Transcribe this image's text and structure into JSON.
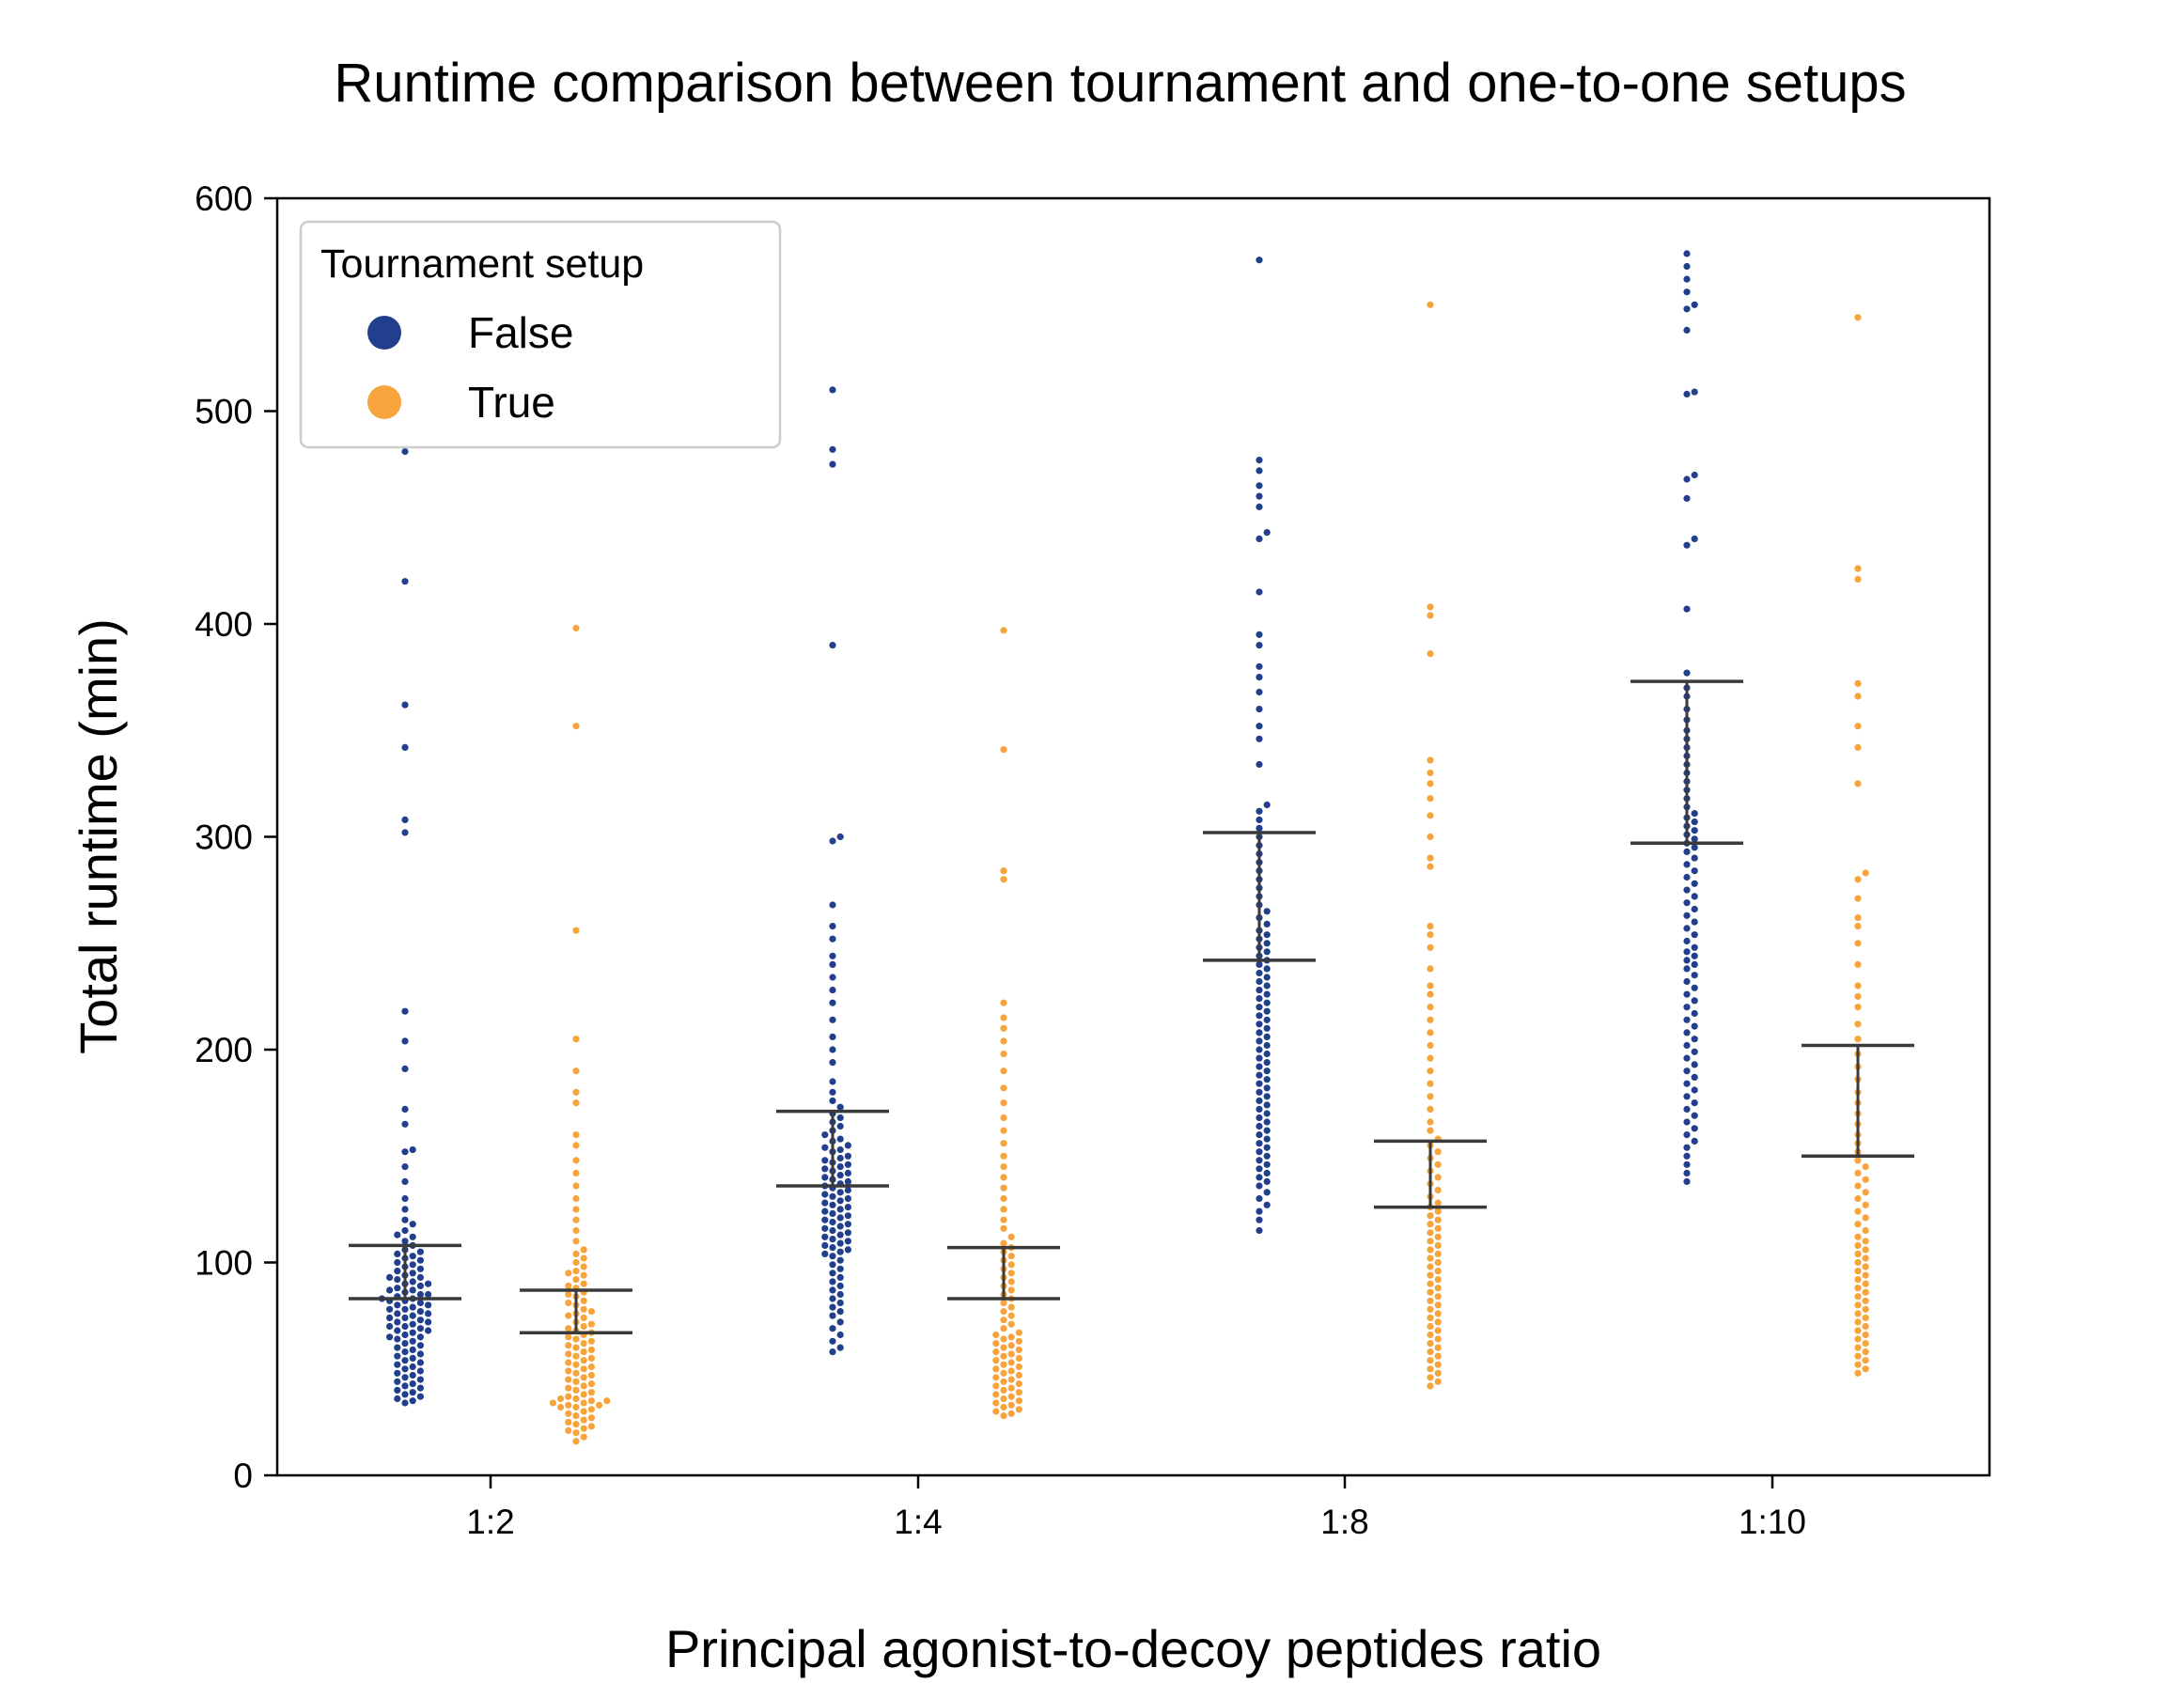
{
  "chart_data": {
    "type": "scatter",
    "subtype": "swarm with interquartile bars",
    "title": "Runtime comparison between tournament and one-to-one setups",
    "xlabel": "Principal agonist-to-decoy peptides ratio",
    "ylabel": "Total runtime (min)",
    "ylim": [
      0,
      600
    ],
    "yticks": [
      0,
      100,
      200,
      300,
      400,
      500,
      600
    ],
    "categories": [
      "1:2",
      "1:4",
      "1:8",
      "1:10"
    ],
    "grid": false,
    "legend": {
      "title": "Tournament setup",
      "placement": "top-left",
      "entries": [
        "False",
        "True"
      ]
    },
    "series": [
      {
        "name": "False",
        "color": "#213f8c",
        "groups": [
          {
            "category": "1:2",
            "q1": 83,
            "q3": 108,
            "points": [
              481,
              420,
              362,
              342,
              308,
              302,
              218,
              204,
              191,
              172,
              165,
              153,
              152,
              145,
              138,
              130,
              125,
              120,
              118,
              115,
              113,
              112,
              110,
              108,
              106,
              105,
              104,
              103,
              102,
              101,
              100,
              99,
              98,
              97,
              96,
              95,
              94,
              93,
              93,
              92,
              91,
              90,
              90,
              89,
              88,
              87,
              87,
              86,
              85,
              85,
              84,
              83,
              83,
              82,
              82,
              81,
              80,
              80,
              79,
              78,
              78,
              77,
              76,
              76,
              75,
              74,
              74,
              73,
              72,
              72,
              71,
              70,
              70,
              69,
              68,
              68,
              67,
              66,
              65,
              65,
              64,
              63,
              62,
              61,
              60,
              59,
              58,
              57,
              56,
              55,
              54,
              53,
              52,
              51,
              50,
              49,
              48,
              47,
              46,
              45,
              44,
              43,
              42,
              41,
              40,
              39,
              38,
              37,
              36,
              35,
              34
            ]
          },
          {
            "category": "1:4",
            "q1": 136,
            "q3": 171,
            "points": [
              510,
              482,
              475,
              390,
              300,
              298,
              268,
              258,
              252,
              244,
              240,
              234,
              228,
              222,
              214,
              206,
              200,
              194,
              185,
              180,
              176,
              173,
              170,
              168,
              166,
              164,
              162,
              160,
              158,
              157,
              155,
              154,
              153,
              152,
              150,
              149,
              148,
              147,
              146,
              145,
              144,
              143,
              142,
              141,
              140,
              139,
              138,
              137,
              136,
              135,
              134,
              133,
              132,
              131,
              130,
              129,
              128,
              127,
              126,
              125,
              124,
              123,
              122,
              121,
              120,
              119,
              118,
              117,
              116,
              115,
              114,
              113,
              112,
              111,
              110,
              109,
              108,
              107,
              106,
              105,
              104,
              103,
              101,
              99,
              97,
              95,
              93,
              91,
              89,
              87,
              85,
              83,
              81,
              79,
              77,
              75,
              72,
              69,
              66,
              63,
              60,
              58
            ]
          },
          {
            "category": "1:8",
            "q1": 242,
            "q3": 302,
            "points": [
              571,
              477,
              472,
              465,
              460,
              455,
              443,
              440,
              415,
              395,
              390,
              380,
              375,
              368,
              360,
              352,
              346,
              334,
              315,
              312,
              308,
              304,
              300,
              296,
              292,
              288,
              284,
              280,
              276,
              272,
              268,
              265,
              262,
              259,
              256,
              254,
              252,
              250,
              248,
              246,
              244,
              242,
              240,
              238,
              236,
              234,
              232,
              230,
              228,
              226,
              224,
              222,
              220,
              218,
              216,
              214,
              212,
              210,
              208,
              206,
              204,
              202,
              200,
              198,
              196,
              194,
              192,
              190,
              188,
              186,
              184,
              182,
              180,
              178,
              176,
              174,
              172,
              170,
              168,
              166,
              164,
              162,
              160,
              158,
              156,
              154,
              152,
              150,
              148,
              146,
              144,
              142,
              140,
              138,
              136,
              133,
              130,
              127,
              124,
              120,
              115
            ]
          },
          {
            "category": "1:10",
            "q1": 297,
            "q3": 373,
            "points": [
              574,
              568,
              562,
              556,
              550,
              548,
              538,
              509,
              508,
              470,
              468,
              459,
              440,
              437,
              407,
              377,
              370,
              366,
              360,
              355,
              350,
              346,
              342,
              338,
              334,
              330,
              326,
              322,
              318,
              314,
              311,
              309,
              307,
              305,
              303,
              301,
              299,
              297,
              295,
              293,
              290,
              287,
              284,
              281,
              278,
              275,
              272,
              269,
              266,
              263,
              260,
              257,
              254,
              251,
              248,
              246,
              244,
              242,
              240,
              238,
              235,
              232,
              229,
              226,
              223,
              220,
              217,
              214,
              211,
              208,
              205,
              202,
              199,
              196,
              193,
              190,
              187,
              184,
              181,
              178,
              175,
              172,
              169,
              166,
              163,
              160,
              157,
              154,
              150,
              146,
              142,
              138
            ]
          }
        ]
      },
      {
        "name": "True",
        "color": "#f7a43c",
        "groups": [
          {
            "category": "1:2",
            "q1": 67,
            "q3": 87,
            "points": [
              398,
              352,
              256,
              205,
              190,
              180,
              175,
              160,
              155,
              148,
              142,
              136,
              130,
              125,
              120,
              115,
              110,
              106,
              104,
              102,
              100,
              98,
              96,
              95,
              94,
              92,
              90,
              89,
              88,
              86,
              85,
              84,
              82,
              81,
              80,
              78,
              77,
              76,
              75,
              74,
              72,
              71,
              70,
              69,
              68,
              67,
              66,
              65,
              64,
              63,
              62,
              61,
              60,
              59,
              58,
              57,
              56,
              55,
              54,
              53,
              52,
              51,
              50,
              49,
              48,
              47,
              46,
              45,
              44,
              43,
              42,
              41,
              40,
              39,
              38,
              37,
              36,
              36,
              35,
              35,
              34,
              34,
              33,
              33,
              32,
              32,
              31,
              30,
              29,
              28,
              27,
              26,
              25,
              24,
              23,
              22,
              21,
              20,
              18,
              16
            ]
          },
          {
            "category": "1:4",
            "q1": 83,
            "q3": 107,
            "points": [
              397,
              341,
              284,
              280,
              222,
              215,
              210,
              204,
              198,
              190,
              182,
              175,
              168,
              162,
              156,
              150,
              145,
              140,
              135,
              130,
              125,
              120,
              116,
              112,
              109,
              107,
              105,
              103,
              101,
              99,
              97,
              95,
              93,
              91,
              89,
              87,
              85,
              83,
              81,
              79,
              77,
              75,
              73,
              71,
              69,
              67,
              66,
              65,
              64,
              63,
              62,
              61,
              60,
              59,
              58,
              57,
              56,
              55,
              54,
              53,
              52,
              51,
              50,
              49,
              48,
              47,
              46,
              45,
              44,
              43,
              42,
              41,
              40,
              39,
              38,
              37,
              36,
              35,
              34,
              33,
              32,
              31,
              30,
              29,
              28
            ]
          },
          {
            "category": "1:8",
            "q1": 126,
            "q3": 157,
            "points": [
              550,
              408,
              404,
              386,
              336,
              330,
              325,
              318,
              310,
              300,
              290,
              286,
              258,
              254,
              248,
              238,
              230,
              226,
              220,
              214,
              208,
              202,
              196,
              190,
              184,
              178,
              172,
              166,
              162,
              158,
              155,
              152,
              149,
              146,
              143,
              140,
              137,
              134,
              131,
              128,
              126,
              124,
              122,
              120,
              118,
              116,
              114,
              112,
              110,
              108,
              106,
              104,
              102,
              100,
              98,
              96,
              94,
              92,
              90,
              88,
              86,
              84,
              82,
              80,
              78,
              76,
              74,
              72,
              70,
              68,
              66,
              64,
              62,
              60,
              58,
              56,
              54,
              52,
              50,
              48,
              46,
              44,
              42
            ]
          },
          {
            "category": "1:10",
            "q1": 150,
            "q3": 202,
            "points": [
              544,
              426,
              421,
              372,
              366,
              352,
              342,
              325,
              283,
              280,
              271,
              262,
              258,
              250,
              240,
              230,
              225,
              220,
              212,
              205,
              198,
              192,
              186,
              180,
              175,
              170,
              165,
              160,
              156,
              152,
              148,
              145,
              142,
              139,
              136,
              133,
              130,
              127,
              124,
              121,
              118,
              115,
              112,
              110,
              108,
              106,
              104,
              102,
              100,
              98,
              96,
              94,
              92,
              90,
              88,
              86,
              84,
              82,
              80,
              78,
              76,
              74,
              72,
              70,
              68,
              66,
              64,
              62,
              60,
              58,
              56,
              54,
              52,
              50,
              48
            ]
          }
        ]
      }
    ]
  }
}
